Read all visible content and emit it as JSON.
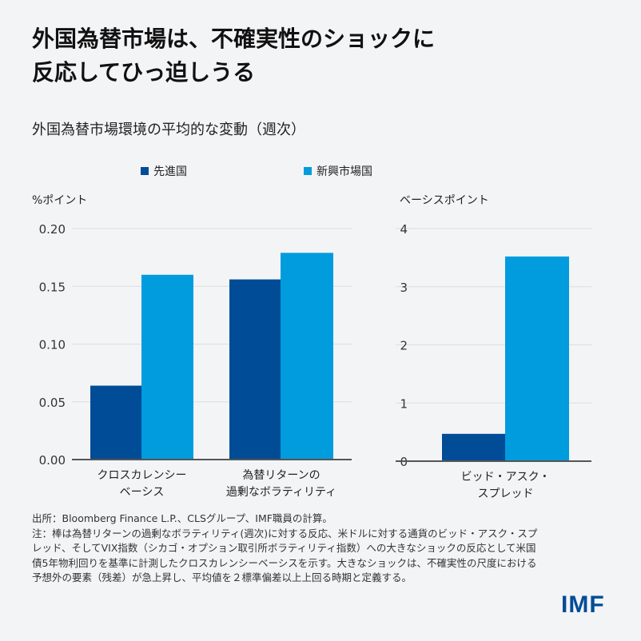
{
  "title_lines": [
    "外国為替市場は、不確実性のショックに",
    "反応してひっ迫しうる"
  ],
  "subtitle": "外国為替市場環境の平均的な変動（週次）",
  "logo": "IMF",
  "colors": {
    "advanced": "#004c97",
    "emerging": "#009cde",
    "grid": "#dcdde0",
    "axis": "#555555"
  },
  "notes": {
    "source": "出所：Bloomberg Finance L.P.、CLSグループ、IMF職員の計算。",
    "note": "注：棒は為替リターンの過剰なボラティリティ(週次)に対する反応、米ドルに対する通貨のビッド・アスク・スプレッド、そしてVIX指数（シカゴ・オプション取引所ボラティリティ指数）への大きなショックの反応として米国債5年物利回りを基準に計測したクロスカレンシーベーシスを示す。大きなショックは、不確実性の尺度における予想外の要素（残差）が急上昇し、平均値を２標準偏差以上上回る時期と定義する。"
  },
  "chart_data": [
    {
      "type": "bar",
      "ylabel": "%ポイント",
      "ylim": [
        0,
        0.2
      ],
      "yticks": [
        "0.00",
        "0.05",
        "0.10",
        "0.15",
        "0.20"
      ],
      "categories": [
        [
          "クロスカレンシー",
          "ベーシス"
        ],
        [
          "為替リターンの",
          "過剰なボラティリティ"
        ]
      ],
      "series": [
        {
          "name": "先進国",
          "values": [
            0.064,
            0.156
          ]
        },
        {
          "name": "新興市場国",
          "values": [
            0.16,
            0.179
          ]
        }
      ],
      "grid": true,
      "legend": "top"
    },
    {
      "type": "bar",
      "ylabel": "ベーシスポイント",
      "ylim": [
        0,
        4
      ],
      "yticks": [
        "0",
        "1",
        "2",
        "3",
        "4"
      ],
      "categories": [
        [
          "ビッド・アスク・",
          "スプレッド"
        ]
      ],
      "series": [
        {
          "name": "先進国",
          "values": [
            0.47
          ]
        },
        {
          "name": "新興市場国",
          "values": [
            3.52
          ]
        }
      ],
      "grid": true
    }
  ]
}
